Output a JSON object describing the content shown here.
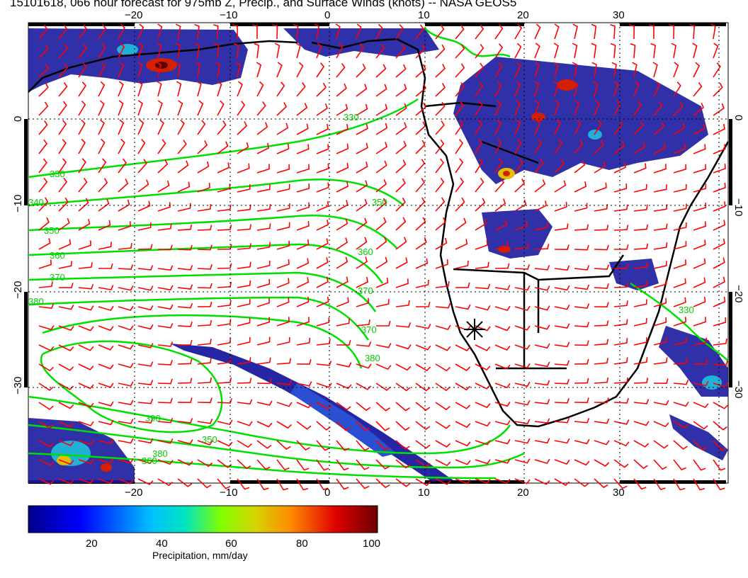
{
  "title": "15101618, 066 hour forecast for 975mb Z, Precip., and Surface Winds (knots) -- NASA GEOS5",
  "axes": {
    "lon_ticks": [
      "−20",
      "−10",
      "0",
      "10",
      "20",
      "30"
    ],
    "lat_ticks": [
      "0",
      "−10",
      "−20",
      "−30"
    ]
  },
  "contour_labels": [
    "330",
    "340",
    "350",
    "360",
    "370",
    "380",
    "390",
    "380",
    "370",
    "360",
    "350",
    "330",
    "380",
    "370",
    "350",
    "360",
    "330"
  ],
  "colorbar": {
    "title": "Precipitation, mm/day",
    "ticks": [
      "20",
      "40",
      "60",
      "80",
      "100"
    ],
    "colors": [
      "#00008b",
      "#0000ff",
      "#00bfff",
      "#00e5c0",
      "#7fff00",
      "#d4d400",
      "#ff8c00",
      "#e00000",
      "#6b0000"
    ]
  },
  "layers": {
    "precip_colors": [
      "#1a1aa0",
      "#2a4fd0",
      "#21b0d8",
      "#e0c000",
      "#d42000",
      "#5a0000"
    ],
    "contour_color": "#00e000",
    "wind_color": "#ff0000",
    "coast_color": "#000000"
  }
}
